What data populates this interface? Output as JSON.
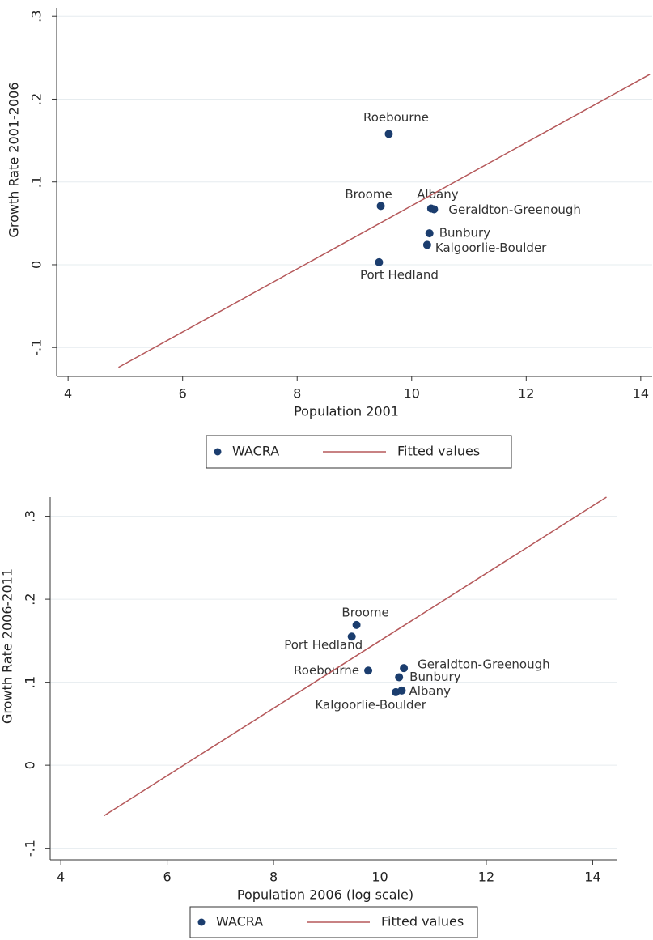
{
  "chart_data": [
    {
      "type": "scatter",
      "xlabel": "Population 2001",
      "ylabel": "Growth Rate 2001-2006",
      "xlim": [
        3.8,
        14.2
      ],
      "ylim": [
        -0.135,
        0.31
      ],
      "xticks": [
        4,
        6,
        8,
        10,
        12,
        14
      ],
      "yticks": [
        {
          "value": -0.1,
          "label": "-.1"
        },
        0,
        {
          "value": 0.1,
          "label": ".1"
        },
        {
          "value": 0.2,
          "label": ".2"
        },
        {
          "value": 0.3,
          "label": ".3"
        }
      ],
      "grid": true,
      "series": [
        {
          "name": "WACRA",
          "color": "#1b3d6e",
          "point_labels": [
            "Roebourne",
            "Broome",
            "Albany",
            "Geraldton-Greenough",
            "Bunbury",
            "Kalgoorlie-Boulder",
            "Port Hedland"
          ],
          "x": [
            9.6,
            9.46,
            10.34,
            10.39,
            10.31,
            10.27,
            9.43
          ],
          "values": [
            0.158,
            0.071,
            0.068,
            0.067,
            0.038,
            0.024,
            0.003
          ]
        },
        {
          "name": "Fitted values",
          "color": "#b5585a",
          "kind": "line",
          "x": [
            4.88,
            14.16
          ],
          "values": [
            -0.124,
            0.23
          ]
        }
      ]
    },
    {
      "type": "scatter",
      "xlabel": "Population 2006 (log scale)",
      "ylabel": "Growth Rate 2006-2011",
      "xlim": [
        3.8,
        14.45
      ],
      "ylim": [
        -0.114,
        0.323
      ],
      "xticks": [
        4,
        6,
        8,
        10,
        12,
        14
      ],
      "yticks": [
        {
          "value": -0.1,
          "label": "-.1"
        },
        0,
        {
          "value": 0.1,
          "label": ".1"
        },
        {
          "value": 0.2,
          "label": ".2"
        },
        {
          "value": 0.3,
          "label": ".3"
        }
      ],
      "grid": true,
      "series": [
        {
          "name": "WACRA",
          "color": "#1b3d6e",
          "point_labels": [
            "Broome",
            "Port Hedland",
            "Roebourne",
            "Geraldton-Greenough",
            "Bunbury",
            "Albany",
            "Kalgoorlie-Boulder"
          ],
          "x": [
            9.56,
            9.47,
            9.78,
            10.45,
            10.36,
            10.41,
            10.3
          ],
          "values": [
            0.169,
            0.155,
            0.114,
            0.117,
            0.106,
            0.09,
            0.088
          ]
        },
        {
          "name": "Fitted values",
          "color": "#b5585a",
          "kind": "line",
          "x": [
            4.81,
            14.26
          ],
          "values": [
            -0.061,
            0.323
          ]
        }
      ]
    }
  ]
}
